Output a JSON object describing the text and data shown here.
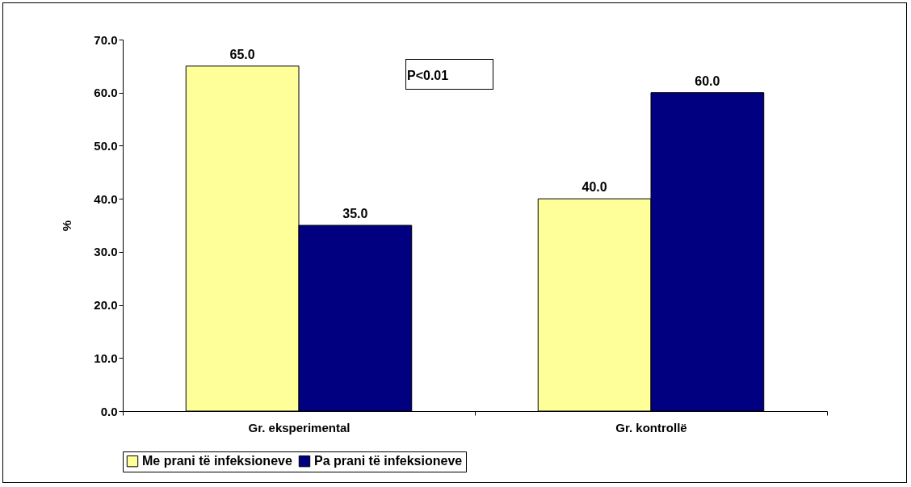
{
  "chart_data": {
    "type": "bar",
    "ylabel": "%",
    "categories": [
      "Gr. eksperimental",
      "Gr. kontrollë"
    ],
    "series": [
      {
        "name": "Me prani të infeksioneve",
        "color": "#ffff99",
        "values": [
          65,
          40
        ],
        "value_labels": [
          "65.0",
          "40.0"
        ]
      },
      {
        "name": "Pa prani të infeksioneve",
        "color": "#000080",
        "values": [
          35,
          60
        ],
        "value_labels": [
          "35.0",
          "60.0"
        ]
      }
    ],
    "ylim": [
      0,
      70
    ],
    "yticks": [
      {
        "value": 0,
        "label": "0.0"
      },
      {
        "value": 10,
        "label": "10.0"
      },
      {
        "value": 20,
        "label": "20.0"
      },
      {
        "value": 30,
        "label": "30.0"
      },
      {
        "value": 40,
        "label": "40.0"
      },
      {
        "value": 50,
        "label": "50.0"
      },
      {
        "value": 60,
        "label": "60.0"
      },
      {
        "value": 70,
        "label": "70.0"
      }
    ],
    "grid": false,
    "legend": "bottom",
    "annotations": [
      "P<0.01"
    ]
  }
}
